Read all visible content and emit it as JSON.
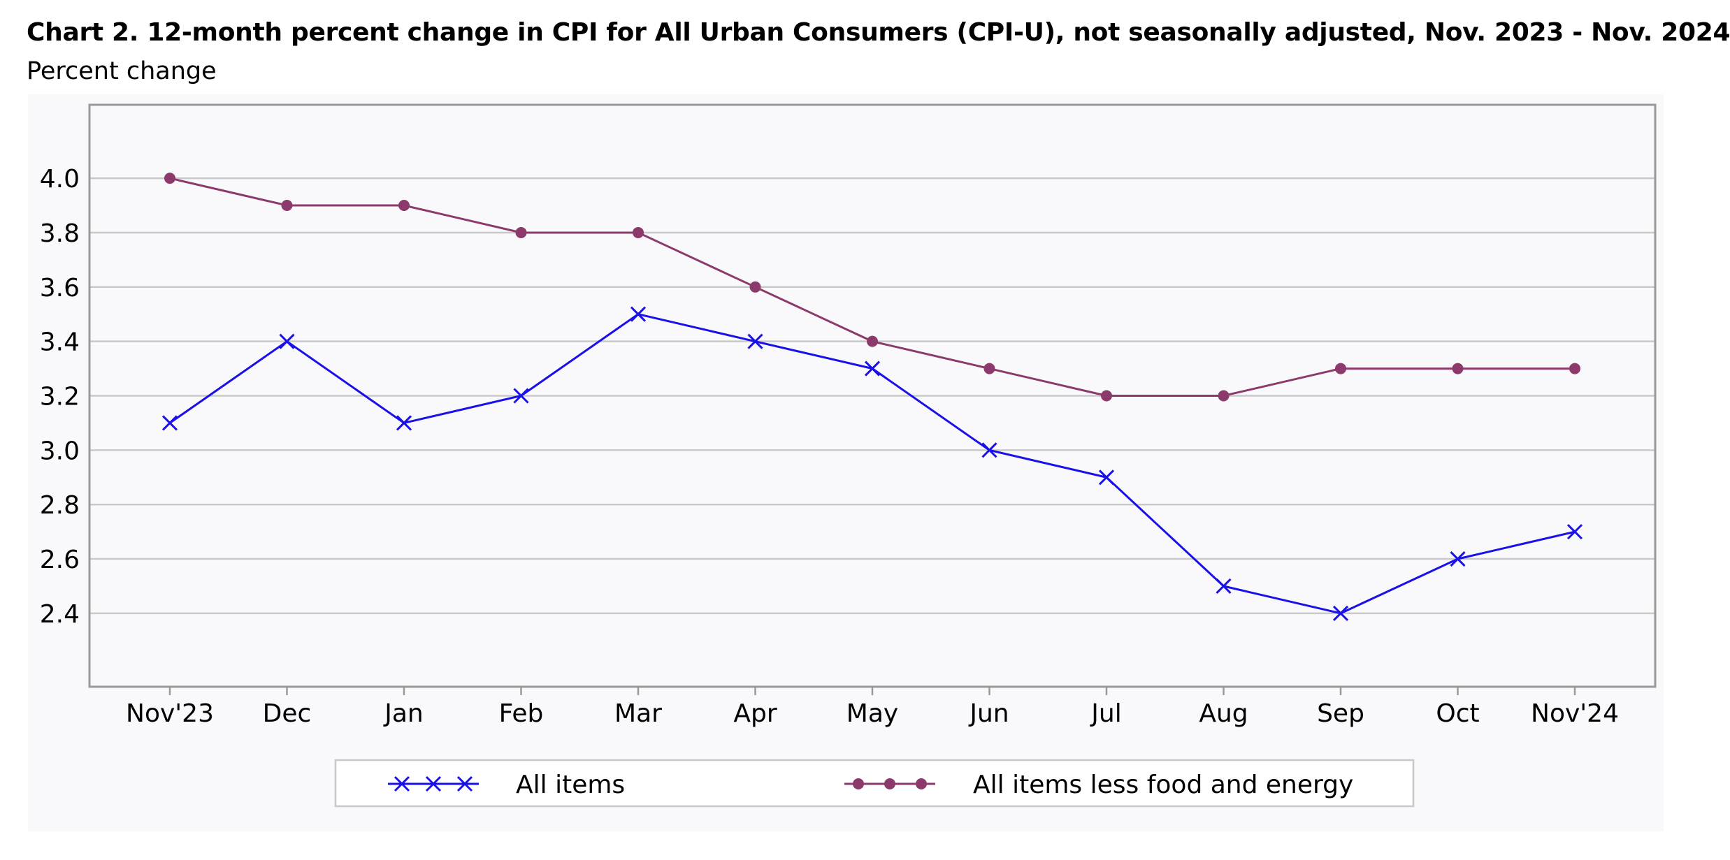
{
  "chart_data": {
    "type": "line",
    "title": "Chart 2. 12-month percent change in CPI for All Urban Consumers (CPI-U), not seasonally adjusted, Nov. 2023 - Nov. 2024",
    "subtitle": "Percent change",
    "xlabel": "",
    "ylabel": "Percent change",
    "categories": [
      "Nov'23",
      "Dec",
      "Jan",
      "Feb",
      "Mar",
      "Apr",
      "May",
      "Jun",
      "Jul",
      "Aug",
      "Sep",
      "Oct",
      "Nov'24"
    ],
    "yticks": [
      2.4,
      2.6,
      2.8,
      3.0,
      3.2,
      3.4,
      3.6,
      3.8,
      4.0
    ],
    "ytick_labels": [
      "2.4",
      "2.6",
      "2.8",
      "3.0",
      "3.2",
      "3.4",
      "3.6",
      "3.8",
      "4.0"
    ],
    "ylim": [
      2.13,
      4.27
    ],
    "grid": true,
    "legend_position": "bottom",
    "series": [
      {
        "name": "All items",
        "color": "#1a10e8",
        "marker": "x",
        "values": [
          3.1,
          3.4,
          3.1,
          3.2,
          3.5,
          3.4,
          3.3,
          3.0,
          2.9,
          2.5,
          2.4,
          2.6,
          2.7
        ]
      },
      {
        "name": "All items less food and energy",
        "color": "#8b3a6b",
        "marker": "circle",
        "values": [
          4.0,
          3.9,
          3.9,
          3.8,
          3.8,
          3.6,
          3.4,
          3.3,
          3.2,
          3.2,
          3.3,
          3.3,
          3.3
        ]
      }
    ]
  }
}
